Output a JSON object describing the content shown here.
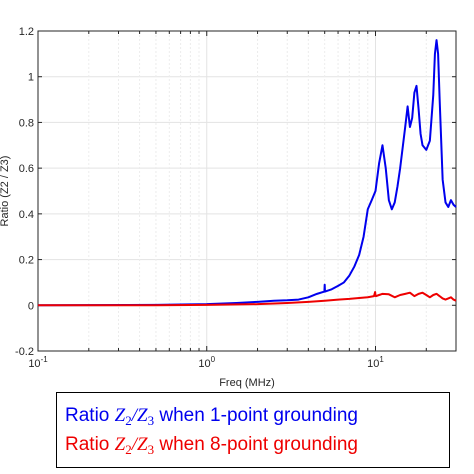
{
  "chart_data": {
    "type": "line",
    "xlabel": "Freq (MHz)",
    "ylabel": "Ratio (Z2 / Z3)",
    "xscale": "log",
    "xlim": [
      0.1,
      30
    ],
    "ylim": [
      -0.2,
      1.2
    ],
    "xticks": [
      {
        "value": 0.1,
        "base": "10",
        "exp": "-1"
      },
      {
        "value": 1,
        "base": "10",
        "exp": "0"
      },
      {
        "value": 10,
        "base": "10",
        "exp": "1"
      }
    ],
    "yticks": [
      "-0.2",
      "0",
      "0.2",
      "0.4",
      "0.6",
      "0.8",
      "1",
      "1.2"
    ],
    "grid": true,
    "legend_position": "bottom-outside",
    "series": [
      {
        "name": "1-point grounding",
        "color": "#0000ee",
        "x": [
          0.1,
          0.5,
          1.0,
          1.5,
          2.0,
          2.5,
          3.0,
          3.5,
          4.0,
          4.5,
          4.98,
          5.0,
          5.02,
          5.5,
          6.0,
          6.5,
          7.0,
          7.5,
          8.0,
          8.5,
          9.0,
          9.5,
          10.0,
          10.5,
          11.0,
          11.5,
          12.0,
          12.5,
          13.0,
          13.5,
          14.0,
          15.0,
          15.5,
          16.0,
          16.5,
          17.0,
          17.5,
          18.0,
          18.5,
          19.0,
          20.0,
          21.0,
          22.0,
          22.5,
          23.0,
          23.5,
          24.0,
          25.0,
          26.0,
          27.0,
          28.0,
          29.0,
          30.0
        ],
        "y": [
          0.0,
          0.002,
          0.005,
          0.01,
          0.015,
          0.02,
          0.022,
          0.025,
          0.035,
          0.05,
          0.06,
          0.09,
          0.06,
          0.07,
          0.085,
          0.1,
          0.13,
          0.17,
          0.22,
          0.3,
          0.42,
          0.46,
          0.5,
          0.62,
          0.7,
          0.6,
          0.46,
          0.42,
          0.45,
          0.52,
          0.6,
          0.78,
          0.87,
          0.78,
          0.82,
          0.93,
          0.96,
          0.86,
          0.75,
          0.7,
          0.68,
          0.72,
          0.92,
          1.1,
          1.16,
          1.1,
          0.9,
          0.55,
          0.45,
          0.43,
          0.46,
          0.44,
          0.43
        ]
      },
      {
        "name": "8-point grounding",
        "color": "#ee0000",
        "x": [
          0.1,
          0.5,
          1.0,
          2.0,
          3.0,
          4.0,
          5.0,
          6.0,
          7.0,
          8.0,
          9.0,
          9.8,
          9.95,
          10.0,
          10.05,
          10.5,
          11.0,
          12.0,
          13.0,
          14.0,
          15.0,
          16.0,
          17.0,
          18.0,
          19.0,
          20.0,
          21.0,
          22.0,
          23.0,
          24.0,
          25.0,
          26.0,
          27.0,
          28.0,
          29.0,
          30.0
        ],
        "y": [
          0.0,
          0.0,
          0.002,
          0.005,
          0.01,
          0.015,
          0.02,
          0.025,
          0.028,
          0.032,
          0.035,
          0.04,
          0.058,
          0.042,
          0.04,
          0.045,
          0.05,
          0.048,
          0.035,
          0.045,
          0.05,
          0.055,
          0.04,
          0.05,
          0.055,
          0.045,
          0.035,
          0.045,
          0.05,
          0.04,
          0.03,
          0.025,
          0.03,
          0.035,
          0.025,
          0.02
        ]
      }
    ]
  },
  "legend": {
    "entries": [
      {
        "prefix": "Ratio ",
        "num_sym": "Z",
        "num_sub": "2",
        "slash": "/",
        "den_sym": "Z",
        "den_sub": "3",
        "suffix": " when 1-point grounding",
        "color": "#0000ee"
      },
      {
        "prefix": "Ratio ",
        "num_sym": "Z",
        "num_sub": "2",
        "slash": "/",
        "den_sym": "Z",
        "den_sub": "3",
        "suffix": " when 8-point grounding",
        "color": "#ee0000"
      }
    ]
  }
}
